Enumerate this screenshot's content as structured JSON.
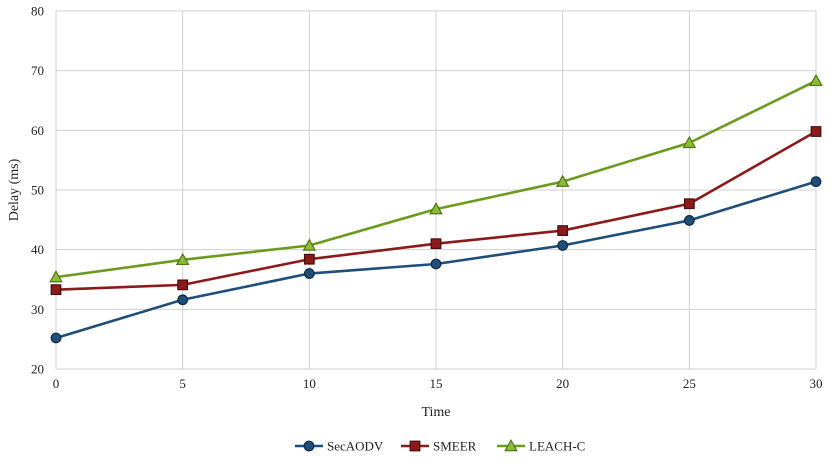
{
  "chart_data": {
    "type": "line",
    "title": "",
    "xlabel": "Time",
    "ylabel": "Delay (ms)",
    "x": [
      0,
      5,
      10,
      15,
      20,
      25,
      30
    ],
    "xticks": [
      "0",
      "5",
      "10",
      "15",
      "20",
      "25",
      "30"
    ],
    "yticks": [
      "20",
      "30",
      "40",
      "50",
      "60",
      "70",
      "80"
    ],
    "xlim": [
      0,
      30
    ],
    "ylim": [
      20,
      80
    ],
    "grid": true,
    "legend_position": "bottom",
    "series": [
      {
        "name": "SecAODV",
        "color": "#1f4e79",
        "marker": "circle",
        "values": [
          25.2,
          31.6,
          36.0,
          37.6,
          40.7,
          44.9,
          51.4
        ]
      },
      {
        "name": "SMEER",
        "color": "#8b1a1a",
        "marker": "square",
        "values": [
          33.3,
          34.1,
          38.4,
          41.0,
          43.2,
          47.7,
          59.8
        ]
      },
      {
        "name": "LEACH-C",
        "color": "#6b9a1f",
        "marker": "triangle",
        "values": [
          35.4,
          38.3,
          40.7,
          46.8,
          51.4,
          57.9,
          68.3
        ]
      }
    ]
  }
}
